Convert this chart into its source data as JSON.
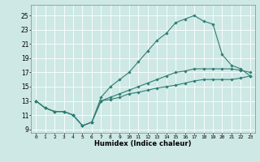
{
  "title": "",
  "xlabel": "Humidex (Indice chaleur)",
  "xlim": [
    -0.5,
    23.5
  ],
  "ylim": [
    8.5,
    26.5
  ],
  "yticks": [
    9,
    11,
    13,
    15,
    17,
    19,
    21,
    23,
    25
  ],
  "xticks": [
    0,
    1,
    2,
    3,
    4,
    5,
    6,
    7,
    8,
    9,
    10,
    11,
    12,
    13,
    14,
    15,
    16,
    17,
    18,
    19,
    20,
    21,
    22,
    23
  ],
  "bg_color": "#cde8e5",
  "line_color": "#2e7d72",
  "grid_color": "#ffffff",
  "curves": [
    {
      "x": [
        0,
        1,
        2,
        3,
        4,
        5,
        6,
        7,
        8,
        9,
        10,
        11,
        12,
        13,
        14,
        15,
        16,
        17,
        18,
        19,
        20,
        21,
        22,
        23
      ],
      "y": [
        13,
        12,
        11.5,
        11.5,
        11,
        9.5,
        10,
        13.5,
        15,
        16,
        17,
        18.5,
        20,
        21.5,
        22.5,
        24,
        24.5,
        25,
        24.2,
        23.8,
        19.5,
        18.0,
        17.5,
        16.5
      ]
    },
    {
      "x": [
        0,
        1,
        2,
        3,
        4,
        5,
        6,
        7,
        8,
        9,
        10,
        11,
        12,
        13,
        14,
        15,
        16,
        17,
        18,
        19,
        20,
        21,
        22,
        23
      ],
      "y": [
        13,
        12,
        11.5,
        11.5,
        11,
        9.5,
        10,
        13,
        13.5,
        14,
        14.5,
        15,
        15.5,
        16,
        16.5,
        17,
        17.2,
        17.5,
        17.5,
        17.5,
        17.5,
        17.5,
        17.3,
        17.0
      ]
    },
    {
      "x": [
        0,
        1,
        2,
        3,
        4,
        5,
        6,
        7,
        8,
        9,
        10,
        11,
        12,
        13,
        14,
        15,
        16,
        17,
        18,
        19,
        20,
        21,
        22,
        23
      ],
      "y": [
        13,
        12,
        11.5,
        11.5,
        11,
        9.5,
        10,
        13,
        13.2,
        13.5,
        14,
        14.2,
        14.5,
        14.8,
        15,
        15.2,
        15.5,
        15.8,
        16,
        16,
        16,
        16,
        16.2,
        16.5
      ]
    }
  ]
}
